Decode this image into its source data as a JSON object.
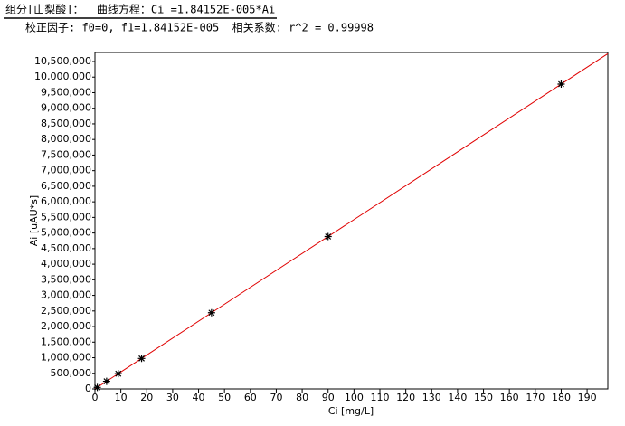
{
  "chart_data": {
    "type": "scatter",
    "title": "组分[山梨酸]：  曲线方程：Ci =1.84152E-005*Ai",
    "subtitle": "校正因子: f0=0, f1=1.84152E-005  相关系数: r^2 = 0.99998",
    "x_label": "Ci [mg/L]",
    "y_label": "Ai [uAU*s]",
    "points": {
      "x": [
        0.9,
        4.5,
        9,
        18,
        45,
        90,
        180
      ],
      "values": [
        48900,
        244400,
        488700,
        977500,
        2443700,
        4887300,
        9774500
      ],
      "color": "#000000"
    },
    "fit_line": {
      "x": [
        0,
        198
      ],
      "values": [
        0,
        10752000
      ],
      "color": "#e00000"
    },
    "xlim": [
      0,
      198
    ],
    "ylim": [
      0,
      10790000
    ],
    "xticks": [
      0,
      10,
      20,
      30,
      40,
      50,
      60,
      70,
      80,
      90,
      100,
      110,
      120,
      130,
      140,
      150,
      160,
      170,
      180,
      190
    ],
    "yticks": [
      0,
      {
        "value": 500000,
        "label": "500,000"
      },
      {
        "value": 1000000,
        "label": "1,000,000"
      },
      {
        "value": 1500000,
        "label": "1,500,000"
      },
      {
        "value": 2000000,
        "label": "2,000,000"
      },
      {
        "value": 2500000,
        "label": "2,500,000"
      },
      {
        "value": 3000000,
        "label": "3,000,000"
      },
      {
        "value": 3500000,
        "label": "3,500,000"
      },
      {
        "value": 4000000,
        "label": "4,000,000"
      },
      {
        "value": 4500000,
        "label": "4,500,000"
      },
      {
        "value": 5000000,
        "label": "5,000,000"
      },
      {
        "value": 5500000,
        "label": "5,500,000"
      },
      {
        "value": 6000000,
        "label": "6,000,000"
      },
      {
        "value": 6500000,
        "label": "6,500,000"
      },
      {
        "value": 7000000,
        "label": "7,000,000"
      },
      {
        "value": 7500000,
        "label": "7,500,000"
      },
      {
        "value": 8000000,
        "label": "8,000,000"
      },
      {
        "value": 8500000,
        "label": "8,500,000"
      },
      {
        "value": 9000000,
        "label": "9,000,000"
      },
      {
        "value": 9500000,
        "label": "9,500,000"
      },
      {
        "value": 10000000,
        "label": "10,000,000"
      },
      {
        "value": 10500000,
        "label": "10,500,000"
      }
    ],
    "grid": false
  }
}
